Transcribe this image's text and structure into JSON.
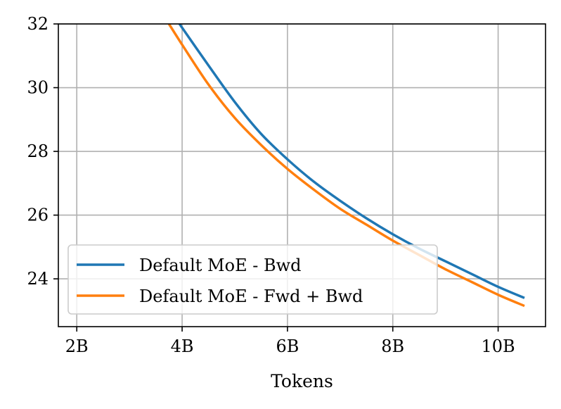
{
  "chart_data": {
    "type": "line",
    "title": "",
    "xlabel": "Tokens",
    "ylabel": "",
    "xlim": [
      1.65,
      10.9
    ],
    "ylim": [
      22.5,
      32
    ],
    "x_ticks": [
      {
        "value": 2,
        "label": "2B"
      },
      {
        "value": 4,
        "label": "4B"
      },
      {
        "value": 6,
        "label": "6B"
      },
      {
        "value": 8,
        "label": "8B"
      },
      {
        "value": 10,
        "label": "10B"
      }
    ],
    "y_ticks": [
      {
        "value": 24,
        "label": "24"
      },
      {
        "value": 26,
        "label": "26"
      },
      {
        "value": 28,
        "label": "28"
      },
      {
        "value": 30,
        "label": "30"
      },
      {
        "value": 32,
        "label": "32"
      }
    ],
    "grid": true,
    "legend_position": "lower-left",
    "series": [
      {
        "name": "Default MoE - Bwd",
        "color": "#1f77b4",
        "x": [
          3.95,
          4.5,
          5.0,
          5.5,
          6.0,
          6.5,
          7.0,
          7.5,
          8.0,
          8.5,
          9.0,
          9.5,
          10.0,
          10.5
        ],
        "y": [
          32.0,
          30.7,
          29.55,
          28.55,
          27.75,
          27.05,
          26.45,
          25.9,
          25.4,
          24.95,
          24.55,
          24.15,
          23.75,
          23.4
        ]
      },
      {
        "name": "Default MoE - Fwd + Bwd",
        "color": "#ff7f0e",
        "x": [
          3.75,
          4.0,
          4.5,
          5.0,
          5.5,
          6.0,
          6.5,
          7.0,
          7.5,
          8.0,
          8.5,
          9.0,
          9.5,
          10.0,
          10.5
        ],
        "y": [
          32.0,
          31.35,
          30.1,
          29.05,
          28.2,
          27.45,
          26.8,
          26.2,
          25.7,
          25.2,
          24.75,
          24.3,
          23.9,
          23.5,
          23.15
        ]
      }
    ]
  }
}
